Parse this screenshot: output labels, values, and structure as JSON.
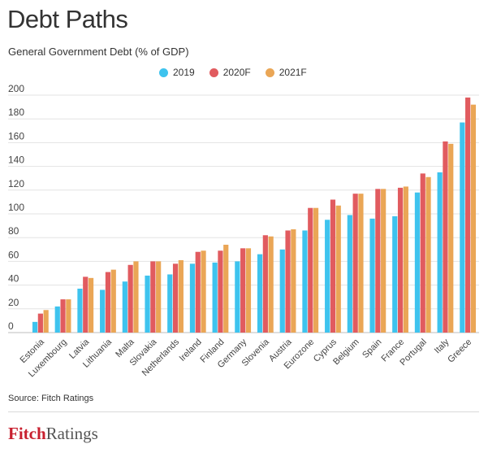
{
  "chart_data": {
    "type": "bar",
    "title": "Debt Paths",
    "subtitle": "General Government Debt (% of GDP)",
    "ylim": [
      0,
      200
    ],
    "yticks": [
      0,
      20,
      40,
      60,
      80,
      100,
      120,
      140,
      160,
      180,
      200
    ],
    "grid": true,
    "legend_position": "top-center",
    "categories": [
      "Estonia",
      "Luxembourg",
      "Latvia",
      "Lithuania",
      "Malta",
      "Slovakia",
      "Netherlands",
      "Ireland",
      "Finland",
      "Germany",
      "Slovenia",
      "Austria",
      "Eurozone",
      "Cyprus",
      "Belgium",
      "Spain",
      "France",
      "Portugal",
      "Italy",
      "Greece"
    ],
    "series": [
      {
        "name": "2019",
        "color": "#3ec3ee",
        "values": [
          9,
          22,
          37,
          36,
          43,
          48,
          49,
          58,
          59,
          60,
          66,
          70,
          86,
          95,
          99,
          96,
          98,
          118,
          135,
          177
        ]
      },
      {
        "name": "2020F",
        "color": "#e15b5f",
        "values": [
          16,
          28,
          47,
          51,
          57,
          60,
          58,
          68,
          69,
          71,
          82,
          86,
          105,
          112,
          117,
          121,
          122,
          134,
          161,
          198
        ]
      },
      {
        "name": "2021F",
        "color": "#eaa656",
        "values": [
          19,
          28,
          46,
          53,
          60,
          60,
          61,
          69,
          74,
          71,
          81,
          87,
          105,
          107,
          117,
          121,
          123,
          131,
          159,
          192
        ]
      }
    ]
  },
  "footer": {
    "source": "Source: Fitch Ratings",
    "logo_part1": "Fitch",
    "logo_part2": "Ratings"
  }
}
